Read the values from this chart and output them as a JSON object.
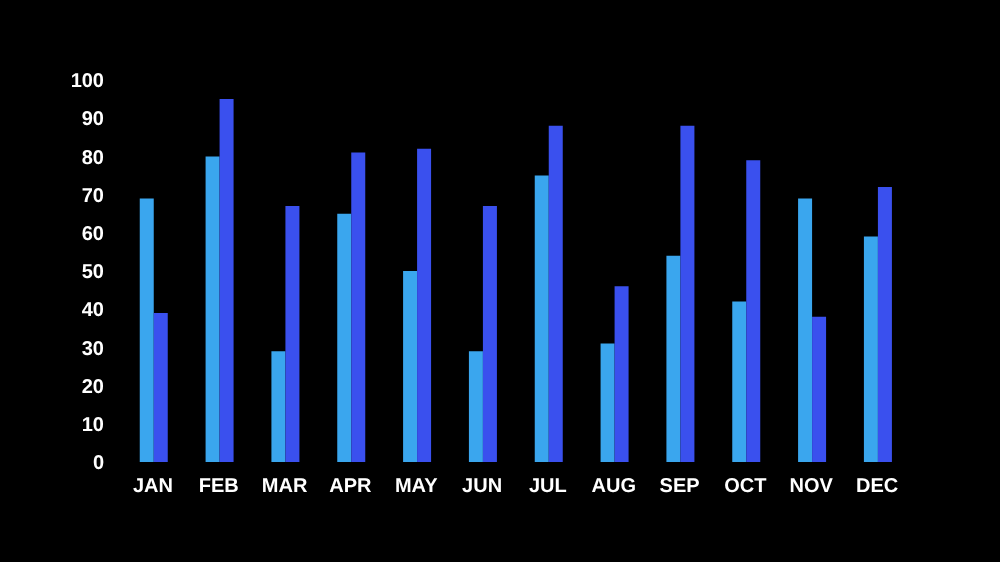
{
  "chart_data": {
    "type": "bar",
    "categories": [
      "JAN",
      "FEB",
      "MAR",
      "APR",
      "MAY",
      "JUN",
      "JUL",
      "AUG",
      "SEP",
      "OCT",
      "NOV",
      "DEC"
    ],
    "series": [
      {
        "color": "#3aa6ee",
        "values": [
          69,
          80,
          29,
          65,
          50,
          29,
          75,
          31,
          54,
          42,
          69,
          59
        ]
      },
      {
        "color": "#3a50ee",
        "values": [
          39,
          95,
          67,
          81,
          82,
          67,
          88,
          46,
          88,
          79,
          38,
          72
        ]
      }
    ],
    "ylim": [
      0,
      100
    ],
    "yticks": [
      0,
      10,
      20,
      30,
      40,
      50,
      60,
      70,
      80,
      90,
      100
    ],
    "grid": false,
    "legend": false
  }
}
